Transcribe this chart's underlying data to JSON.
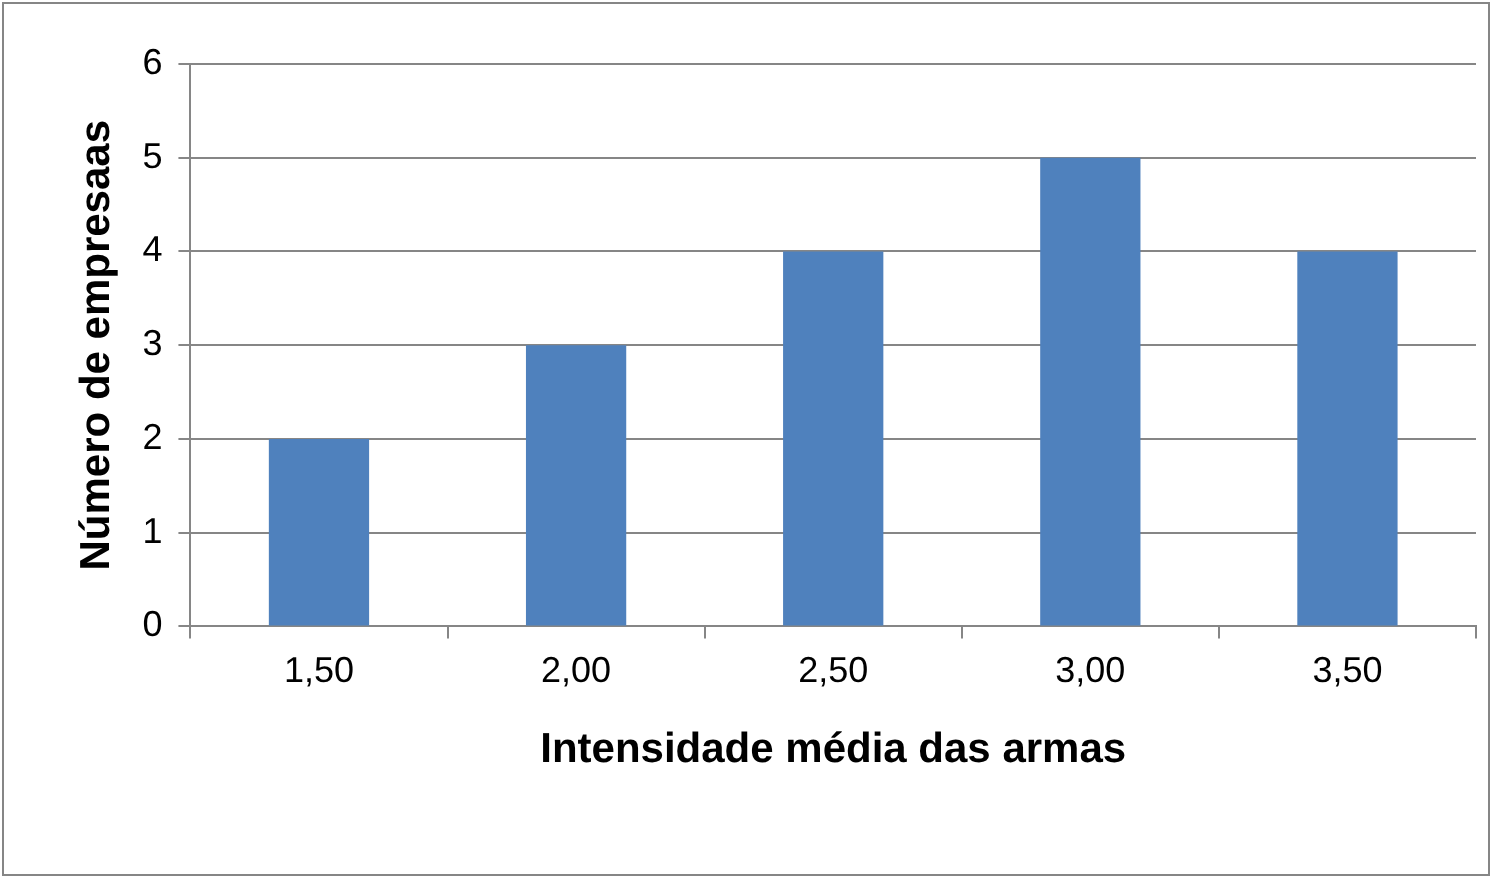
{
  "chart_data": {
    "type": "bar",
    "xlabel": "Intensidade média das armas",
    "ylabel": "Número de empresaas",
    "categories": [
      "1,50",
      "2,00",
      "2,50",
      "3,00",
      "3,50"
    ],
    "values": [
      2,
      3,
      4,
      5,
      4
    ],
    "color": "#4f81bd",
    "ylim": [
      0,
      6
    ],
    "yticks": [
      0,
      1,
      2,
      3,
      4,
      5,
      6
    ],
    "grid": "y",
    "legend": false
  }
}
